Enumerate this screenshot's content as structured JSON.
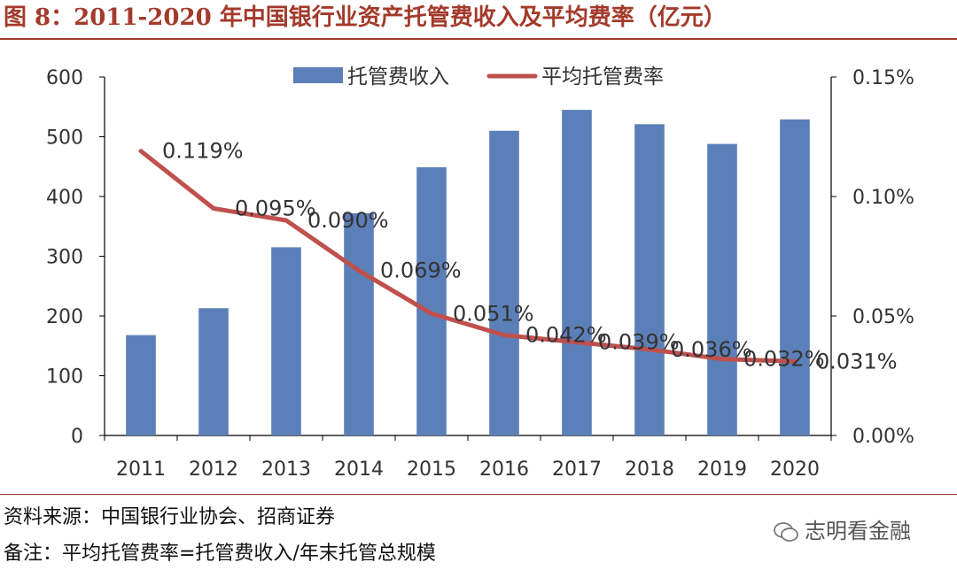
{
  "title": "图 8：2011-2020 年中国银行业资产托管费收入及平均费率（亿元）",
  "source": "资料来源：中国银行业协会、招商证券",
  "remark": "备注：平均托管费率=托管费收入/年末托管总规模",
  "watermark": "志明看金融",
  "colors": {
    "bar": "#5b7fb8",
    "line": "#c0504d",
    "title": "#a33a2b"
  },
  "chart_data": {
    "type": "bar+line",
    "categories": [
      "2011",
      "2012",
      "2013",
      "2014",
      "2015",
      "2016",
      "2017",
      "2018",
      "2019",
      "2020"
    ],
    "series": [
      {
        "name": "托管费收入",
        "type": "bar",
        "axis": "left",
        "values": [
          168,
          213,
          315,
          372,
          449,
          510,
          545,
          521,
          488,
          529
        ]
      },
      {
        "name": "平均托管费率",
        "type": "line",
        "axis": "right",
        "values": [
          0.119,
          0.095,
          0.09,
          0.069,
          0.051,
          0.042,
          0.039,
          0.036,
          0.032,
          0.031
        ],
        "labels": [
          "0.119%",
          "0.095%",
          "0.090%",
          "0.069%",
          "0.051%",
          "0.042%",
          "0.039%",
          "0.036%",
          "0.032%",
          "0.031%"
        ]
      }
    ],
    "y_left": {
      "min": 0,
      "max": 600,
      "ticks": [
        0,
        100,
        200,
        300,
        400,
        500,
        600
      ]
    },
    "y_right": {
      "min": 0,
      "max": 0.15,
      "ticks": [
        0,
        0.05,
        0.1,
        0.15
      ],
      "tick_labels": [
        "0.00%",
        "0.05%",
        "0.10%",
        "0.15%"
      ]
    },
    "legend": {
      "position": "top-center",
      "entries": [
        "托管费收入",
        "平均托管费率"
      ]
    },
    "grid": false
  }
}
